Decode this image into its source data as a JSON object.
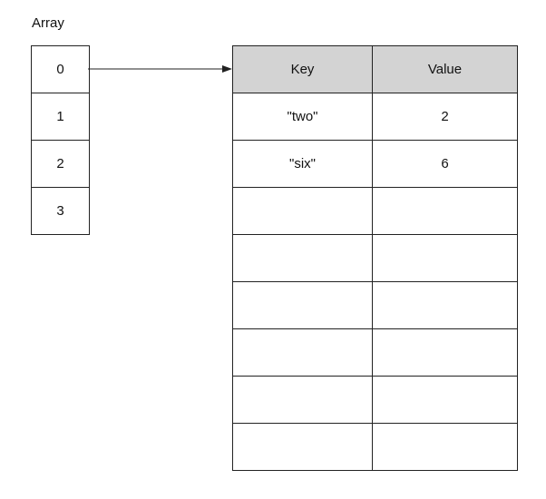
{
  "array": {
    "title": "Array",
    "indices": [
      "0",
      "1",
      "2",
      "3"
    ]
  },
  "table": {
    "headers": {
      "key": "Key",
      "value": "Value"
    },
    "rows": [
      {
        "key": "\"two\"",
        "value": "2"
      },
      {
        "key": "\"six\"",
        "value": "6"
      },
      {
        "key": "",
        "value": ""
      },
      {
        "key": "",
        "value": ""
      },
      {
        "key": "",
        "value": ""
      },
      {
        "key": "",
        "value": ""
      },
      {
        "key": "",
        "value": ""
      },
      {
        "key": "",
        "value": ""
      }
    ]
  },
  "colors": {
    "header_fill": "#d3d3d3",
    "line": "#222222"
  }
}
